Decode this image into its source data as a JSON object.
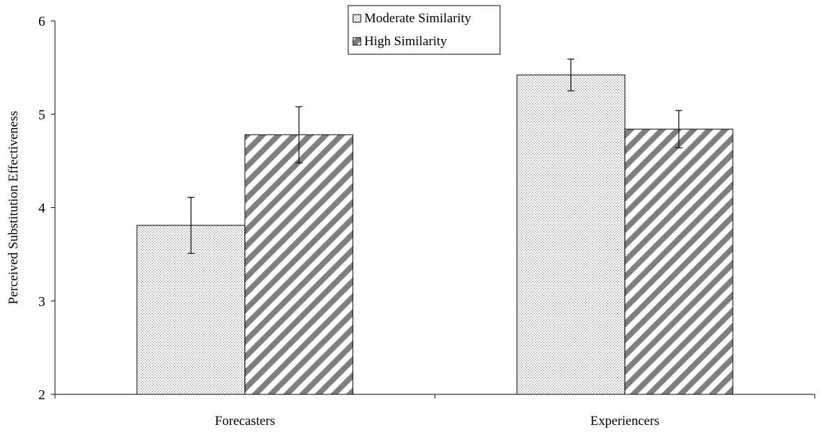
{
  "chart_data": {
    "type": "bar",
    "title": "",
    "xlabel": "",
    "ylabel": "Perceived Substitution Effectiveness",
    "ylim": [
      2,
      6
    ],
    "yticks": [
      2,
      3,
      4,
      5,
      6
    ],
    "yticks_labels": [
      "2",
      "3",
      "4",
      "5",
      "6"
    ],
    "categories": [
      "Forecasters",
      "Experiencers"
    ],
    "grid": false,
    "legend_position": "top-center",
    "series": [
      {
        "name": "Moderate Similarity",
        "values": [
          3.81,
          5.42
        ],
        "error": [
          0.3,
          0.17
        ],
        "pattern": "dotted",
        "color": "#a6a6a6"
      },
      {
        "name": "High Similarity",
        "values": [
          4.78,
          4.84
        ],
        "error": [
          0.3,
          0.2
        ],
        "pattern": "diagonal-stripes",
        "color": "#7f7f7f"
      }
    ]
  }
}
